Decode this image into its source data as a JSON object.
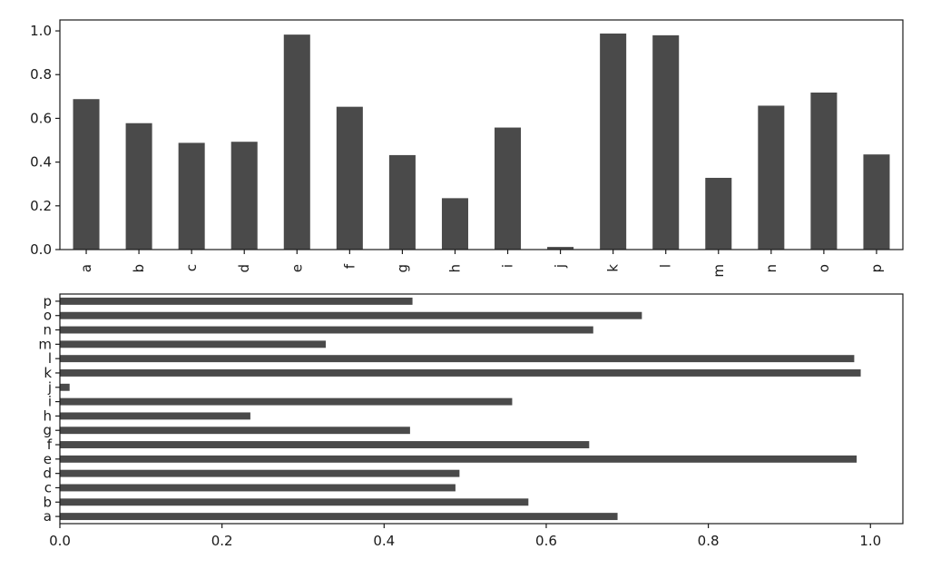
{
  "chart_data": [
    {
      "type": "bar",
      "orientation": "vertical",
      "categories": [
        "a",
        "b",
        "c",
        "d",
        "e",
        "f",
        "g",
        "h",
        "i",
        "j",
        "k",
        "l",
        "m",
        "n",
        "o",
        "p"
      ],
      "values": [
        0.688,
        0.578,
        0.488,
        0.493,
        0.983,
        0.653,
        0.432,
        0.235,
        0.558,
        0.012,
        0.988,
        0.98,
        0.328,
        0.658,
        0.718,
        0.435
      ],
      "bar_color": "#4a4a4a",
      "title": "",
      "xlabel": "",
      "ylabel": "",
      "ylim": [
        0,
        1.05
      ],
      "yticks": [
        "0.0",
        "0.2",
        "0.4",
        "0.6",
        "0.8",
        "1.0"
      ],
      "tick_values": [
        0,
        0.2,
        0.4,
        0.6,
        0.8,
        1.0
      ],
      "xtick_rotation": "vertical",
      "grid": false,
      "legend": "none"
    },
    {
      "type": "bar",
      "orientation": "horizontal",
      "categories": [
        "a",
        "b",
        "c",
        "d",
        "e",
        "f",
        "g",
        "h",
        "i",
        "j",
        "k",
        "l",
        "m",
        "n",
        "o",
        "p"
      ],
      "values": [
        0.688,
        0.578,
        0.488,
        0.493,
        0.983,
        0.653,
        0.432,
        0.235,
        0.558,
        0.012,
        0.988,
        0.98,
        0.328,
        0.658,
        0.718,
        0.435
      ],
      "bar_color": "#4a4a4a",
      "title": "",
      "xlabel": "",
      "ylabel": "",
      "xlim": [
        0,
        1.04
      ],
      "xticks": [
        "0.0",
        "0.2",
        "0.4",
        "0.6",
        "0.8",
        "1.0"
      ],
      "tick_values": [
        0,
        0.2,
        0.4,
        0.6,
        0.8,
        1.0
      ],
      "grid": false,
      "legend": "none"
    }
  ]
}
